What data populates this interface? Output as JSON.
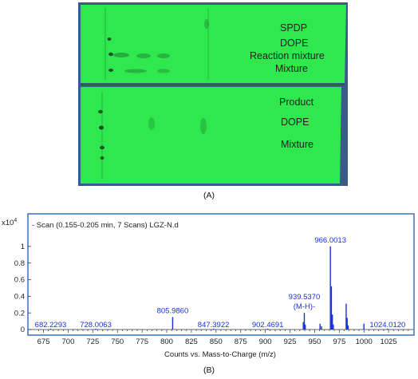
{
  "panel_a": {
    "label": "(A)",
    "plate_top_labels": [
      "SPDP",
      "DOPE",
      "Reaction mixture",
      "Mixture"
    ],
    "plate_bottom_labels": [
      "Product",
      "DOPE",
      "Mixture"
    ],
    "colors": {
      "background": "#3a5a8c",
      "plate": "#2ee84e",
      "spot": "#1a3a22"
    }
  },
  "panel_b": {
    "label": "(B)",
    "colors": {
      "frame": "#3a6fc4",
      "peak": "#1a2fd6",
      "label": "#1a2fd6",
      "axis": "#333333"
    }
  },
  "chart_data": {
    "type": "bar",
    "title": "- Scan (0.155-0.205 min, 7 Scans) LGZ-N.d",
    "xlabel": "Counts vs. Mass-to-Charge (m/z)",
    "ylabel": "",
    "y_scale_label": "x10",
    "y_scale_exponent": "4",
    "xlim": [
      660,
      1050
    ],
    "ylim": [
      0,
      1.2
    ],
    "x_ticks": [
      675,
      700,
      725,
      750,
      775,
      800,
      825,
      850,
      875,
      900,
      925,
      950,
      975,
      1000,
      1025
    ],
    "y_ticks": [
      0,
      0.2,
      0.4,
      0.6,
      0.8,
      1
    ],
    "y_tick_labels": [
      "0",
      "0.2",
      "0.4",
      "0.6",
      "0.8",
      "1"
    ],
    "peaks": [
      {
        "x": 682.2293,
        "y": 0.01
      },
      {
        "x": 728.0063,
        "y": 0.01
      },
      {
        "x": 805.986,
        "y": 0.15
      },
      {
        "x": 847.3922,
        "y": 0.01
      },
      {
        "x": 902.4691,
        "y": 0.01
      },
      {
        "x": 938.5,
        "y": 0.09
      },
      {
        "x": 939.537,
        "y": 0.2
      },
      {
        "x": 940.5,
        "y": 0.06
      },
      {
        "x": 955.5,
        "y": 0.07
      },
      {
        "x": 957.0,
        "y": 0.04
      },
      {
        "x": 966.0013,
        "y": 1.0
      },
      {
        "x": 967.0,
        "y": 0.52
      },
      {
        "x": 968.0,
        "y": 0.18
      },
      {
        "x": 969.0,
        "y": 0.06
      },
      {
        "x": 982.0,
        "y": 0.31
      },
      {
        "x": 983.0,
        "y": 0.14
      },
      {
        "x": 984.0,
        "y": 0.05
      },
      {
        "x": 1000.0,
        "y": 0.07
      },
      {
        "x": 1024.012,
        "y": 0.01
      }
    ],
    "peak_labels": [
      {
        "x": 682.2293,
        "y": 0.01,
        "text": "682.2293"
      },
      {
        "x": 728.0063,
        "y": 0.01,
        "text": "728.0063"
      },
      {
        "x": 805.986,
        "y": 0.15,
        "text": "805.9860"
      },
      {
        "x": 847.3922,
        "y": 0.01,
        "text": "847.3922"
      },
      {
        "x": 902.4691,
        "y": 0.01,
        "text": "902.4691"
      },
      {
        "x": 939.537,
        "y": 0.2,
        "text": "939.5370",
        "sub": "(M-H)-"
      },
      {
        "x": 966.0013,
        "y": 1.0,
        "text": "966.0013"
      },
      {
        "x": 1024.012,
        "y": 0.01,
        "text": "1024.0120"
      }
    ]
  }
}
